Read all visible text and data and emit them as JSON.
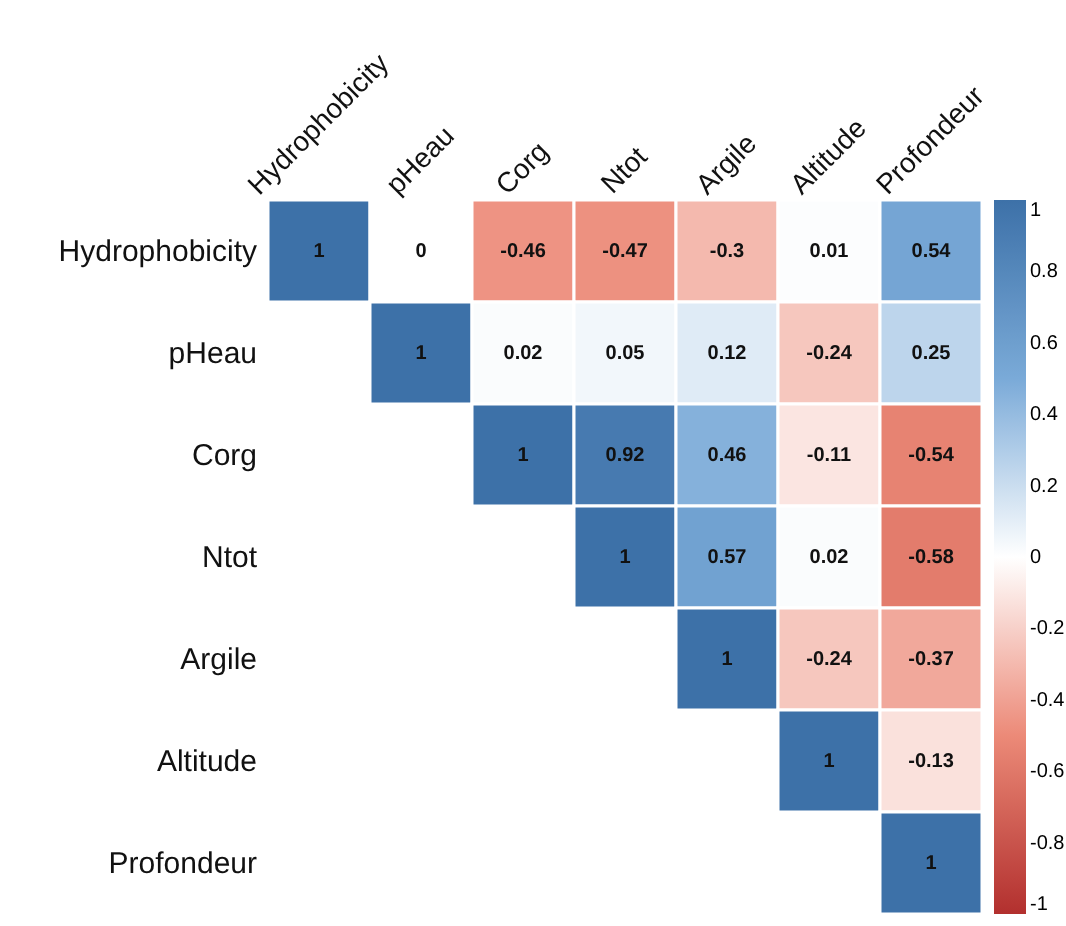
{
  "chart_data": {
    "type": "heatmap",
    "categories": [
      "Hydrophobicity",
      "pHeau",
      "Corg",
      "Ntot",
      "Argile",
      "Altitude",
      "Profondeur"
    ],
    "y_categories": [
      "Hydrophobicity",
      "pHeau",
      "Corg",
      "Ntot",
      "Argile",
      "Altitude",
      "Profondeur"
    ],
    "cells": [
      [
        1,
        0,
        -0.46,
        -0.47,
        -0.3,
        0.01,
        0.54
      ],
      [
        null,
        1,
        0.02,
        0.05,
        0.12,
        -0.24,
        0.25
      ],
      [
        null,
        null,
        1,
        0.92,
        0.46,
        -0.11,
        -0.54
      ],
      [
        null,
        null,
        null,
        1,
        0.57,
        0.02,
        -0.58
      ],
      [
        null,
        null,
        null,
        null,
        1,
        -0.24,
        -0.37
      ],
      [
        null,
        null,
        null,
        null,
        null,
        1,
        -0.13
      ],
      [
        null,
        null,
        null,
        null,
        null,
        null,
        1
      ]
    ],
    "clim": [
      -1,
      1
    ],
    "cticks": [
      -1,
      -0.8,
      -0.6,
      -0.4,
      -0.2,
      0,
      0.2,
      0.4,
      0.6,
      0.8,
      1
    ],
    "data_labels": true
  }
}
